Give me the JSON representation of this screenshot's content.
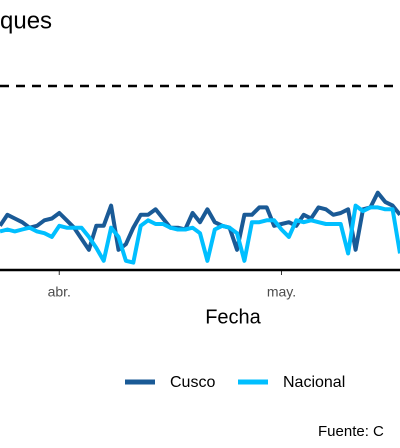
{
  "chart_data": {
    "type": "line",
    "title": "ques",
    "x_label": "Fecha",
    "caption": "Fuente: C",
    "x": [
      0,
      1,
      2,
      3,
      4,
      5,
      6,
      7,
      8,
      9,
      10,
      11,
      12,
      13,
      14,
      15,
      16,
      17,
      18,
      19,
      20,
      21,
      22,
      23,
      24,
      25,
      26,
      27,
      28,
      29,
      30,
      31,
      32,
      33,
      34,
      35,
      36,
      37,
      38,
      39,
      40,
      41,
      42,
      43,
      44,
      45,
      46,
      47,
      48,
      49,
      50,
      51,
      52,
      53,
      54
    ],
    "xlim": [
      0,
      54
    ],
    "xticks": [
      {
        "value": 8,
        "label": "abr."
      },
      {
        "value": 38,
        "label": "may."
      }
    ],
    "ylim": [
      0,
      100
    ],
    "reference_line": 100,
    "legend": "bottom",
    "series": [
      {
        "name": "Cusco",
        "color": "#1a5a96",
        "values": [
          24,
          30,
          28,
          26,
          23,
          24,
          27,
          28,
          31,
          27,
          23,
          17,
          11,
          24,
          24,
          35,
          11,
          14,
          23,
          30,
          30,
          33,
          28,
          23,
          23,
          22,
          31,
          26,
          33,
          26,
          24,
          23,
          11,
          30,
          30,
          34,
          34,
          24,
          25,
          26,
          24,
          30,
          28,
          34,
          33,
          30,
          31,
          33,
          11,
          33,
          34,
          42,
          37,
          35,
          30
        ]
      },
      {
        "name": "Nacional",
        "color": "#00bfff",
        "values": [
          21,
          22,
          21,
          22,
          23,
          21,
          20,
          18,
          24,
          23,
          23,
          23,
          18,
          12,
          5,
          23,
          18,
          5,
          4,
          24,
          27,
          25,
          25,
          23,
          22,
          22,
          23,
          20,
          5,
          22,
          24,
          23,
          20,
          5,
          26,
          26,
          27,
          27,
          22,
          18,
          27,
          26,
          27,
          26,
          25,
          25,
          25,
          9,
          35,
          32,
          34,
          34,
          33,
          33,
          9
        ]
      }
    ]
  }
}
